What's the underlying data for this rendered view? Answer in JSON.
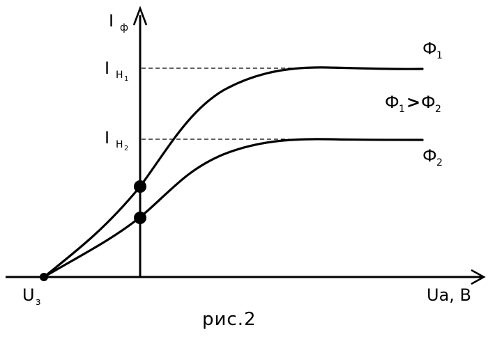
{
  "y_axis_label": {
    "main": "I",
    "sub": "ф"
  },
  "x_axis_label": "Ua, B",
  "origin_label": {
    "main": "U",
    "sub": "з"
  },
  "level_labels": [
    {
      "main": "I",
      "sub": "Н",
      "subsub": "1"
    },
    {
      "main": "I",
      "sub": "Н",
      "subsub": "2"
    }
  ],
  "curve_labels": [
    {
      "main": "Ф",
      "sub": "1"
    },
    {
      "main": "Ф",
      "sub": "2"
    }
  ],
  "relation": {
    "left": "Ф",
    "left_sub": "1",
    "op": ">",
    "right": "Ф",
    "right_sub": "2"
  },
  "caption": "рис.2",
  "colors": {
    "ink": "#000000",
    "background": "#ffffff"
  }
}
